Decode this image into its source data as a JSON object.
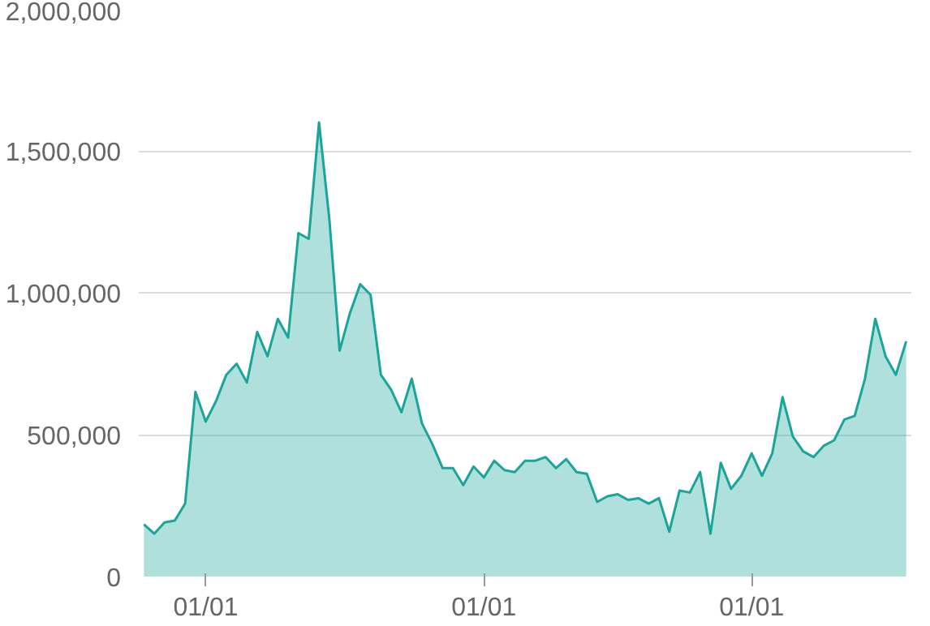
{
  "chart_data": {
    "type": "area",
    "ylim": [
      0,
      2000000
    ],
    "yticks": [
      {
        "value": 0,
        "label": "0"
      },
      {
        "value": 500000,
        "label": "500,000"
      },
      {
        "value": 1000000,
        "label": "1,000,000"
      },
      {
        "value": 1500000,
        "label": "1,500,000"
      },
      {
        "value": 2000000,
        "label": "2,000,000"
      }
    ],
    "grid": "y",
    "categories": [
      null,
      null,
      null,
      null,
      null,
      null,
      "01/01",
      null,
      null,
      null,
      null,
      null,
      null,
      null,
      null,
      null,
      null,
      null,
      null,
      null,
      null,
      null,
      null,
      null,
      null,
      null,
      null,
      null,
      null,
      null,
      null,
      null,
      null,
      "01/01",
      null,
      null,
      null,
      null,
      null,
      null,
      null,
      null,
      null,
      null,
      null,
      null,
      null,
      null,
      null,
      null,
      null,
      null,
      null,
      null,
      null,
      null,
      null,
      null,
      null,
      "01/01",
      null,
      null,
      null,
      null,
      null,
      null,
      null,
      null,
      null,
      null,
      null,
      null,
      null,
      null,
      null
    ],
    "series": [
      {
        "color": "#1aa59a",
        "values": [
          184000,
          151000,
          191000,
          197000,
          257000,
          651000,
          546000,
          618000,
          711000,
          750000,
          684000,
          862000,
          776000,
          908000,
          842000,
          1210000,
          1190000,
          1600000,
          1260000,
          796000,
          928000,
          1030000,
          993000,
          711000,
          658000,
          579000,
          697000,
          539000,
          467000,
          382000,
          382000,
          322000,
          388000,
          349000,
          408000,
          375000,
          368000,
          408000,
          408000,
          421000,
          382000,
          414000,
          368000,
          362000,
          263000,
          283000,
          290000,
          270000,
          276000,
          257000,
          276000,
          158000,
          303000,
          296000,
          368000,
          151000,
          401000,
          309000,
          355000,
          434000,
          355000,
          434000,
          632000,
          493000,
          441000,
          421000,
          461000,
          480000,
          553000,
          566000,
          697000,
          908000,
          776000,
          711000,
          829000
        ]
      }
    ]
  }
}
